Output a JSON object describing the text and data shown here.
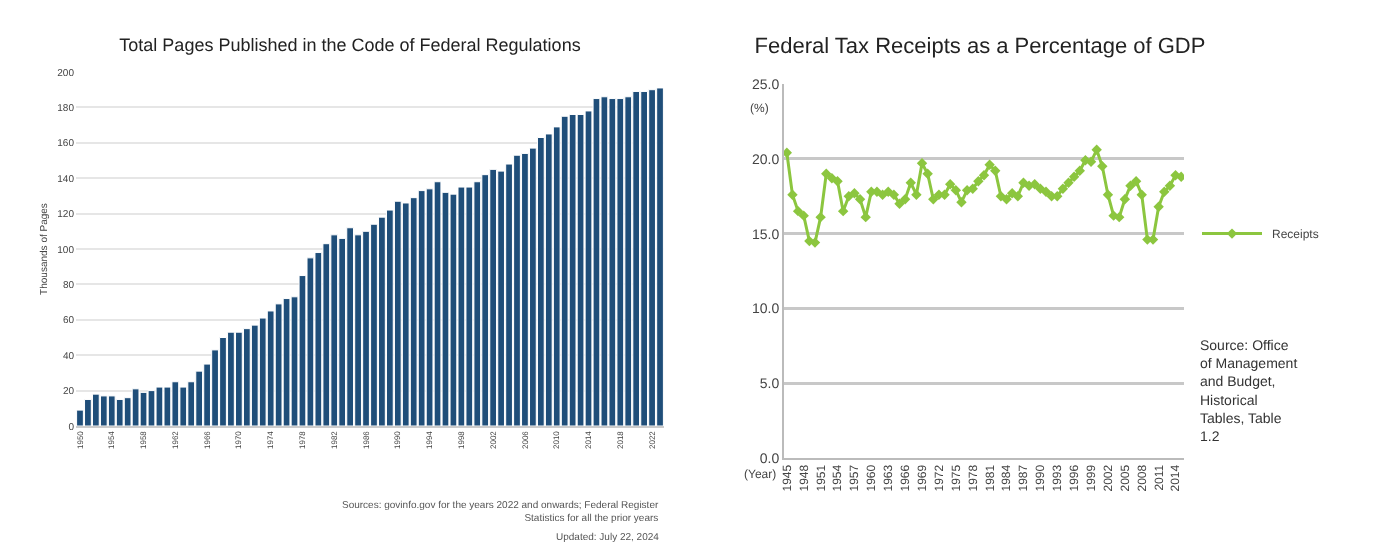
{
  "chart_data": [
    {
      "type": "bar",
      "title": "Total Pages Published in the Code of Federal Regulations",
      "ylabel": "Thousands of Pages",
      "categories": [
        "1950",
        null,
        null,
        null,
        "1954",
        null,
        null,
        null,
        "1958",
        null,
        null,
        null,
        "1962",
        null,
        null,
        null,
        "1966",
        null,
        null,
        null,
        "1970",
        null,
        null,
        null,
        "1974",
        null,
        null,
        null,
        "1978",
        null,
        null,
        null,
        "1982",
        null,
        null,
        null,
        "1986",
        null,
        null,
        null,
        "1990",
        null,
        null,
        null,
        "1994",
        null,
        null,
        null,
        "1998",
        null,
        null,
        null,
        "2002",
        null,
        null,
        null,
        "2006",
        null,
        null,
        null,
        "2010",
        null,
        null,
        null,
        "2014",
        null,
        null,
        null,
        "2018",
        null,
        null,
        null,
        "2022",
        null
      ],
      "values": [
        9,
        15,
        18,
        17,
        17,
        15,
        16,
        21,
        19,
        20,
        22,
        22,
        25,
        22,
        25,
        31,
        35,
        43,
        50,
        53,
        53,
        55,
        57,
        61,
        65,
        69,
        72,
        73,
        85,
        95,
        98,
        103,
        108,
        106,
        112,
        108,
        110,
        114,
        118,
        122,
        127,
        126,
        129,
        133,
        134,
        138,
        132,
        131,
        135,
        135,
        138,
        142,
        145,
        144,
        148,
        153,
        154,
        157,
        163,
        165,
        169,
        175,
        176,
        176,
        178,
        185,
        186,
        185,
        185,
        186,
        189,
        189,
        190,
        191
      ],
      "color": "#1f4e79",
      "ylim": [
        0,
        200
      ],
      "yticks": [
        0,
        20,
        40,
        60,
        80,
        100,
        120,
        140,
        160,
        180,
        200
      ],
      "grid": "y",
      "legend": false,
      "annotations": [
        "Sources: govinfo.gov for the years 2022 and onwards; Federal Register Statistics for all the prior years",
        "Updated: July 22, 2024"
      ]
    },
    {
      "type": "line",
      "title": "Federal Tax Receipts as a Percentage of GDP",
      "ylabel": "(%)",
      "xlabel": "(Year)",
      "categories": [
        "1945",
        null,
        null,
        "1948",
        null,
        null,
        "1951",
        null,
        null,
        "1954",
        null,
        null,
        "1957",
        null,
        null,
        "1960",
        null,
        null,
        "1963",
        null,
        null,
        "1966",
        null,
        null,
        "1969",
        null,
        null,
        "1972",
        null,
        null,
        "1975",
        null,
        null,
        "1978",
        null,
        null,
        "1981",
        null,
        null,
        "1984",
        null,
        null,
        "1987",
        null,
        null,
        "1990",
        null,
        null,
        "1993",
        null,
        null,
        "1996",
        null,
        null,
        "1999",
        null,
        null,
        "2002",
        null,
        null,
        "2005",
        null,
        null,
        "2008",
        null,
        null,
        "2011",
        null,
        null,
        "2014",
        null
      ],
      "series": [
        {
          "name": "Receipts",
          "color": "#8cc63f",
          "values": [
            20.4,
            17.6,
            16.5,
            16.2,
            14.5,
            14.4,
            16.1,
            19.0,
            18.7,
            18.5,
            16.5,
            17.5,
            17.7,
            17.3,
            16.1,
            17.8,
            17.8,
            17.6,
            17.8,
            17.6,
            17.0,
            17.3,
            18.4,
            17.6,
            19.7,
            19.0,
            17.3,
            17.6,
            17.6,
            18.3,
            17.9,
            17.1,
            17.9,
            18.0,
            18.5,
            18.9,
            19.6,
            19.2,
            17.5,
            17.3,
            17.7,
            17.5,
            18.4,
            18.2,
            18.3,
            18.0,
            17.8,
            17.5,
            17.5,
            18.0,
            18.4,
            18.8,
            19.2,
            19.9,
            19.8,
            20.6,
            19.5,
            17.6,
            16.2,
            16.1,
            17.3,
            18.2,
            18.5,
            17.6,
            14.6,
            14.6,
            16.8,
            17.8,
            18.2,
            18.9,
            18.8
          ]
        }
      ],
      "ylim": [
        0,
        25
      ],
      "yticks": [
        {
          "value": 0,
          "label": "0.0"
        },
        {
          "value": 5,
          "label": "5.0"
        },
        {
          "value": 10,
          "label": "10.0"
        },
        {
          "value": 15,
          "label": "15.0"
        },
        {
          "value": 20,
          "label": "20.0"
        },
        {
          "value": 25,
          "label": "25.0"
        }
      ],
      "grid": "y",
      "legend": "right",
      "marker": "diamond",
      "line_style": "solid",
      "annotations": [
        "Source: Office of Management and Budget, Historical Tables, Table 1.2"
      ]
    }
  ]
}
